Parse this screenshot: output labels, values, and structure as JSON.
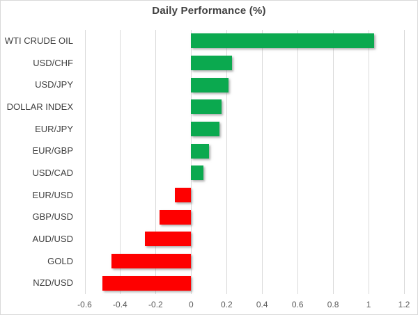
{
  "chart_data": {
    "type": "bar",
    "orientation": "horizontal",
    "title": "Daily Performance (%)",
    "categories": [
      "WTI CRUDE OIL",
      "USD/CHF",
      "USD/JPY",
      "DOLLAR INDEX",
      "EUR/JPY",
      "EUR/GBP",
      "USD/CAD",
      "EUR/USD",
      "GBP/USD",
      "AUD/USD",
      "GOLD",
      "NZD/USD"
    ],
    "values": [
      1.03,
      0.23,
      0.21,
      0.17,
      0.16,
      0.1,
      0.07,
      -0.09,
      -0.18,
      -0.26,
      -0.45,
      -0.5
    ],
    "xlabel": "",
    "ylabel": "",
    "xlim": [
      -0.7,
      1.2
    ],
    "xticks": [
      -0.6,
      -0.4,
      -0.2,
      0,
      0.2,
      0.4,
      0.6,
      0.8,
      1,
      1.2
    ],
    "grid": true,
    "legend": false,
    "colors": {
      "positive": "#0BA94F",
      "negative": "#FE0000",
      "gridline": "#D9D9D9",
      "border": "#D9D9D9",
      "title_text": "#404040",
      "category_text": "#404040",
      "tick_text": "#595959"
    }
  }
}
